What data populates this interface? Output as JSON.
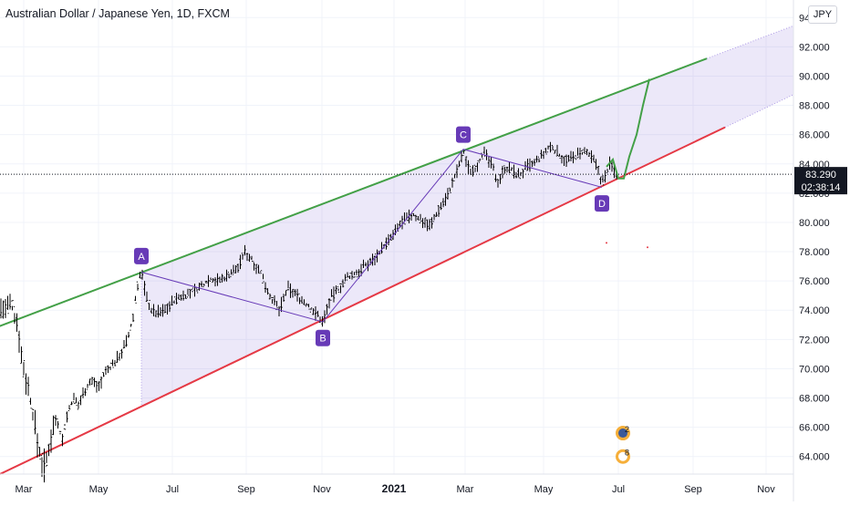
{
  "chart_data": {
    "type": "candlestick",
    "title": "Australian Dollar / Japanese Yen, 1D, FXCM",
    "currency": "JPY",
    "ylim": [
      62.8,
      95.2
    ],
    "y_ticks": [
      "64.000",
      "66.000",
      "68.000",
      "70.000",
      "72.000",
      "74.000",
      "76.000",
      "78.000",
      "80.000",
      "82.000",
      "84.000",
      "86.000",
      "88.000",
      "90.000",
      "92.000",
      "94.000"
    ],
    "x_ticks": [
      "Mar",
      "May",
      "Jul",
      "Sep",
      "Nov",
      "2021",
      "Mar",
      "May",
      "Jul",
      "Sep",
      "Nov"
    ],
    "last_price": {
      "value": 83.29,
      "label": "83.290",
      "countdown": "02:38:14"
    },
    "price_path": [
      [
        0,
        74.2
      ],
      [
        6,
        74.0
      ],
      [
        12,
        74.3
      ],
      [
        20,
        73.0
      ],
      [
        24,
        70.5
      ],
      [
        30,
        69.0
      ],
      [
        36,
        67.0
      ],
      [
        40,
        65.3
      ],
      [
        46,
        63.6
      ],
      [
        50,
        63.2
      ],
      [
        56,
        65.5
      ],
      [
        62,
        66.8
      ],
      [
        68,
        65.0
      ],
      [
        72,
        66.5
      ],
      [
        80,
        68.0
      ],
      [
        86,
        67.5
      ],
      [
        92,
        68.5
      ],
      [
        100,
        69.2
      ],
      [
        108,
        68.8
      ],
      [
        116,
        69.8
      ],
      [
        124,
        70.3
      ],
      [
        132,
        71.0
      ],
      [
        140,
        72.0
      ],
      [
        146,
        73.5
      ],
      [
        150,
        75.5
      ],
      [
        155,
        76.7
      ],
      [
        160,
        75.0
      ],
      [
        166,
        74.0
      ],
      [
        172,
        73.8
      ],
      [
        180,
        74.0
      ],
      [
        190,
        74.6
      ],
      [
        200,
        75.0
      ],
      [
        210,
        75.2
      ],
      [
        220,
        75.6
      ],
      [
        230,
        76.2
      ],
      [
        240,
        76.0
      ],
      [
        250,
        76.4
      ],
      [
        262,
        77.0
      ],
      [
        268,
        78.0
      ],
      [
        276,
        77.5
      ],
      [
        286,
        76.5
      ],
      [
        296,
        75.0
      ],
      [
        306,
        74.0
      ],
      [
        316,
        75.5
      ],
      [
        326,
        75.0
      ],
      [
        336,
        74.4
      ],
      [
        346,
        73.8
      ],
      [
        354,
        73.2
      ],
      [
        362,
        74.8
      ],
      [
        372,
        75.5
      ],
      [
        380,
        76.2
      ],
      [
        390,
        76.5
      ],
      [
        400,
        77.0
      ],
      [
        410,
        77.5
      ],
      [
        420,
        78.3
      ],
      [
        430,
        79.0
      ],
      [
        440,
        80.0
      ],
      [
        452,
        80.5
      ],
      [
        462,
        80.2
      ],
      [
        472,
        79.8
      ],
      [
        482,
        81.0
      ],
      [
        492,
        82.0
      ],
      [
        500,
        83.3
      ],
      [
        508,
        84.8
      ],
      [
        515,
        83.5
      ],
      [
        522,
        83.8
      ],
      [
        530,
        84.8
      ],
      [
        538,
        84.0
      ],
      [
        546,
        82.8
      ],
      [
        554,
        83.8
      ],
      [
        562,
        83.5
      ],
      [
        570,
        83.2
      ],
      [
        578,
        83.8
      ],
      [
        586,
        84.0
      ],
      [
        594,
        84.5
      ],
      [
        604,
        85.2
      ],
      [
        612,
        84.7
      ],
      [
        622,
        84.2
      ],
      [
        632,
        84.6
      ],
      [
        642,
        84.8
      ],
      [
        650,
        84.3
      ],
      [
        656,
        83.6
      ],
      [
        660,
        82.7
      ],
      [
        664,
        83.2
      ],
      [
        668,
        84.0
      ],
      [
        672,
        83.7
      ],
      [
        676,
        83.3
      ]
    ],
    "channel": {
      "upper_line": [
        [
          -1,
          72.9
        ],
        [
          775,
          91.2
        ]
      ],
      "lower_line": [
        [
          0,
          62.8
        ],
        [
          795,
          86.5
        ]
      ],
      "upper_line_color": "#43a047",
      "lower_line_color": "#e53945",
      "fill_color": "#7b5cd6"
    },
    "pattern": {
      "labels": [
        "A",
        "B",
        "C",
        "D"
      ],
      "points": [
        [
          155,
          76.6
        ],
        [
          354,
          73.2
        ],
        [
          508,
          85.0
        ],
        [
          660,
          82.4
        ]
      ],
      "label_positions": [
        [
          155,
          77.7
        ],
        [
          354,
          72.1
        ],
        [
          508,
          86.0
        ],
        [
          660,
          81.3
        ]
      ],
      "color": "#673ab7"
    },
    "projection": [
      [
        665,
        83.8
      ],
      [
        672,
        84.3
      ],
      [
        678,
        83.0
      ],
      [
        684,
        83.0
      ],
      [
        690,
        84.5
      ],
      [
        698,
        86.0
      ],
      [
        705,
        88.0
      ],
      [
        712,
        89.8
      ]
    ],
    "events": [
      {
        "x": 683,
        "y": 65.6,
        "label": "2"
      },
      {
        "x": 683,
        "y": 64.0,
        "label": "8"
      }
    ]
  }
}
